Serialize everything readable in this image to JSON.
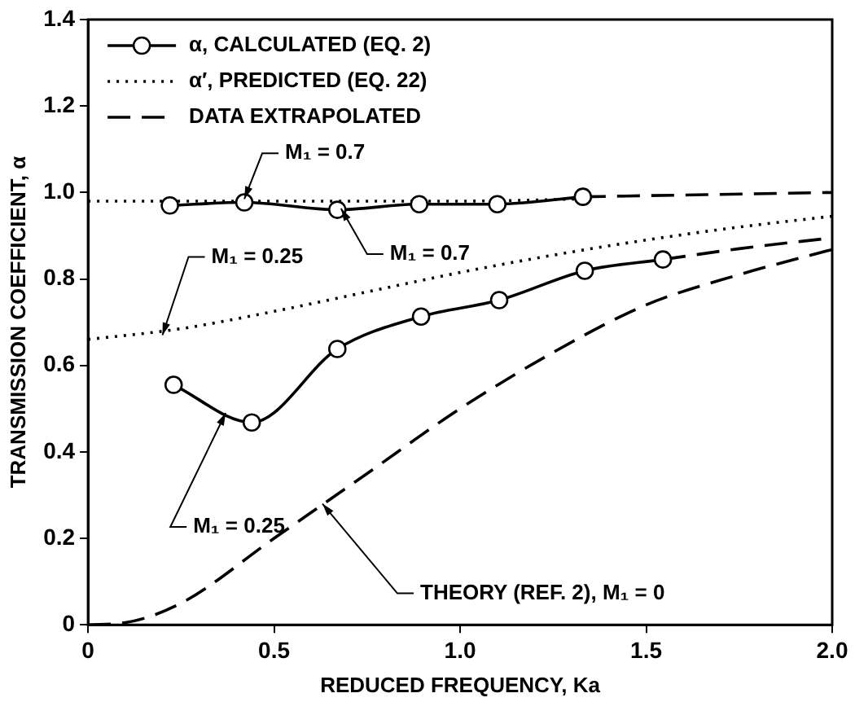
{
  "chart_data": {
    "type": "line",
    "xlabel": "REDUCED FREQUENCY, Ka",
    "ylabel": "TRANSMISSION COEFFICIENT, α",
    "xlim": [
      0,
      2
    ],
    "xticks": [
      0,
      0.5,
      {
        "value": 1,
        "label": "1.0"
      },
      1.5,
      {
        "value": 2,
        "label": "2.0"
      }
    ],
    "ylim": [
      0,
      1.4
    ],
    "yticks": [
      0,
      0.2,
      0.4,
      0.6,
      0.8,
      {
        "value": 1,
        "label": "1.0"
      },
      1.2,
      1.4
    ],
    "grid": false,
    "legend": "top left",
    "series": [
      {
        "name": "α, CALCULATED (EQ. 2)",
        "color": "#000000",
        "marker": "circle",
        "line_style": "solid",
        "x": [
          0.22,
          0.42,
          0.67,
          0.89,
          1.1,
          1.33
        ],
        "values": [
          0.97,
          0.977,
          0.96,
          0.973,
          0.973,
          0.99
        ]
      },
      {
        "color": "#000000",
        "marker": "circle",
        "line_style": "solid",
        "x": [
          0.23,
          0.44,
          0.67,
          0.895,
          1.105,
          1.335,
          1.545
        ],
        "values": [
          0.555,
          0.468,
          0.638,
          0.713,
          0.751,
          0.819,
          0.845
        ]
      },
      {
        "name": "α′, PREDICTED (EQ. 22)",
        "color": "#000000",
        "marker": "none",
        "line_style": "dotted",
        "x": [
          0,
          0.5,
          1,
          1.33
        ],
        "values": [
          0.98,
          0.98,
          0.98,
          0.985
        ]
      },
      {
        "color": "#000000",
        "marker": "none",
        "line_style": "dotted",
        "x": [
          0,
          0.25,
          0.5,
          0.75,
          1,
          1.25,
          1.5,
          1.75,
          2
        ],
        "values": [
          0.66,
          0.685,
          0.725,
          0.77,
          0.815,
          0.855,
          0.89,
          0.92,
          0.945
        ]
      },
      {
        "name": "DATA EXTRAPOLATED",
        "color": "#000000",
        "marker": "none",
        "line_style": "dashed",
        "x": [
          1.33,
          1.66,
          2
        ],
        "values": [
          0.99,
          0.995,
          1.0
        ]
      },
      {
        "color": "#000000",
        "marker": "none",
        "line_style": "dashed",
        "x": [
          1.545,
          1.75,
          2
        ],
        "values": [
          0.845,
          0.87,
          0.895
        ]
      },
      {
        "color": "#000000",
        "marker": "none",
        "line_style": "dashed",
        "x": [
          0,
          0.1,
          0.25,
          0.5,
          0.75,
          1,
          1.25,
          1.5,
          1.75,
          2
        ],
        "values": [
          0,
          0.005,
          0.05,
          0.2,
          0.35,
          0.5,
          0.63,
          0.74,
          0.81,
          0.868
        ]
      }
    ],
    "annotations": [
      {
        "text": "M₁ = 0.7",
        "x": 0.42,
        "y": 0.985
      },
      {
        "text": "M₁ = 0.7",
        "x": 0.68,
        "y": 0.963
      },
      {
        "text": "M₁ = 0.25",
        "x": 0.2,
        "y": 0.67
      },
      {
        "text": "M₁ = 0.25",
        "x": 0.37,
        "y": 0.49
      },
      {
        "text": "THEORY (REF. 2), M₁ = 0",
        "x": 0.63,
        "y": 0.28
      }
    ]
  }
}
